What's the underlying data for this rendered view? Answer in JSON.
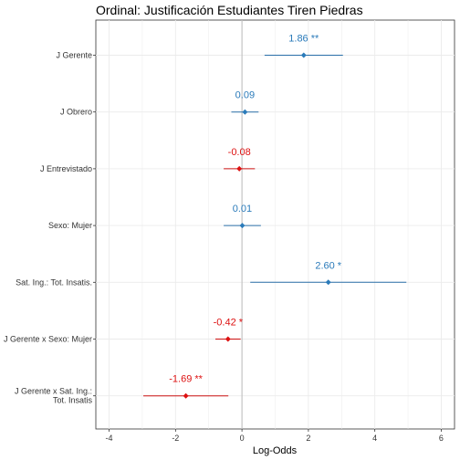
{
  "chart_data": {
    "type": "scatter",
    "title": "Ordinal: Justificación Estudiantes Tiren Piedras",
    "xlabel": "Log-Odds",
    "ylabel": "",
    "xlim": [
      -4.4,
      6.4
    ],
    "xticks": [
      -4,
      -2,
      0,
      2,
      4,
      6
    ],
    "grid": true,
    "legend": "none",
    "colors": {
      "positive": "#2b7bba",
      "negative": "#dd1111",
      "errorbar_pos": "#2a6fa8",
      "errorbar_neg": "#cc1111",
      "zero_line": "#bbbbbb"
    },
    "points": [
      {
        "term": [
          "J Gerente"
        ],
        "estimate": 1.86,
        "low": 0.68,
        "high": 3.04,
        "label": "1.86 **"
      },
      {
        "term": [
          "J Obrero"
        ],
        "estimate": 0.09,
        "low": -0.32,
        "high": 0.5,
        "label": "0.09"
      },
      {
        "term": [
          "J Entrevistado"
        ],
        "estimate": -0.08,
        "low": -0.55,
        "high": 0.39,
        "label": "-0.08"
      },
      {
        "term": [
          "Sexo: Mujer"
        ],
        "estimate": 0.01,
        "low": -0.55,
        "high": 0.57,
        "label": "0.01"
      },
      {
        "term": [
          "Sat. Ing.: Tot. Insatis."
        ],
        "estimate": 2.6,
        "low": 0.25,
        "high": 4.95,
        "label": "2.60 *"
      },
      {
        "term": [
          "J Gerente x Sexo: Mujer"
        ],
        "estimate": -0.42,
        "low": -0.8,
        "high": -0.04,
        "label": "-0.42 *"
      },
      {
        "term": [
          "J Gerente x Sat. Ing.:",
          "Tot. Insatis"
        ],
        "estimate": -1.69,
        "low": -2.97,
        "high": -0.41,
        "label": "-1.69 **"
      }
    ]
  }
}
